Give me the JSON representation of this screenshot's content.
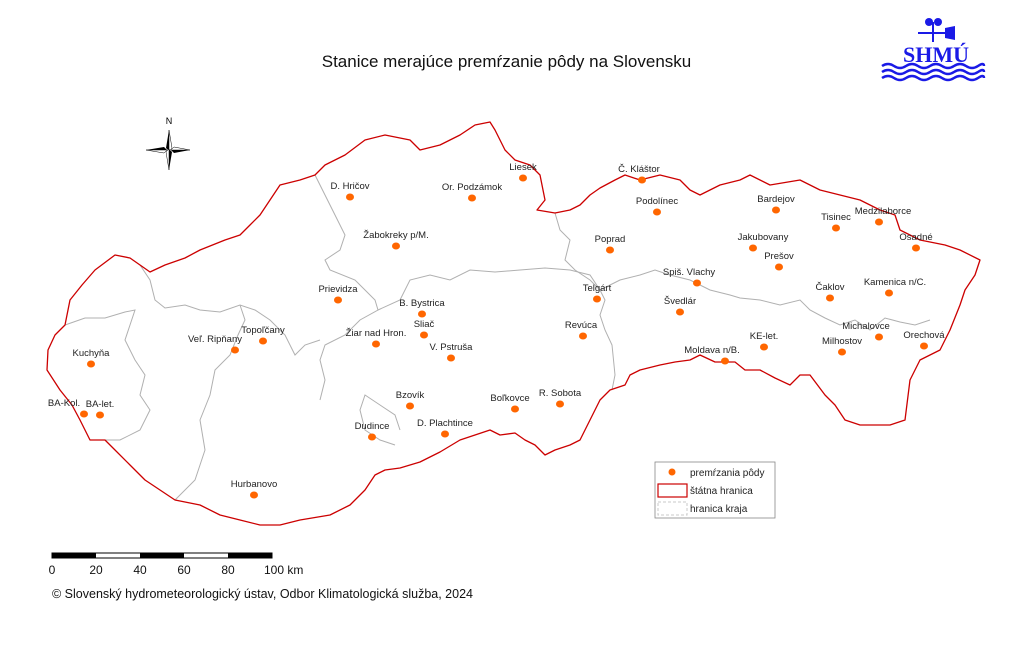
{
  "title": "Stanice merajúce premŕzanie pôdy na Slovensku",
  "logo": {
    "text": "SHMÚ",
    "color": "#1a1ae6"
  },
  "north_arrow": {
    "label": "N"
  },
  "colors": {
    "station": "#ff6600",
    "state_border": "#cc0000",
    "region_border": "#b0b0b0"
  },
  "stations": [
    "D. Hričov",
    "Or. Podzámok",
    "Žabokreky p/M.",
    "Prievidza",
    "B. Bystrica",
    "Sliač",
    "Žiar nad Hron.",
    "V. Pstruša",
    "Topoľčany",
    "Veľ. Ripňany",
    "Kuchyňa",
    "BA-Kol.",
    "BA-let.",
    "Bzovík",
    "Dudince",
    "D. Plachtince",
    "Hurbanovo",
    "Liesek",
    "Č. Kláštor",
    "Podolínec",
    "Poprad",
    "Bardejov",
    "Tisinec",
    "Medzilaborce",
    "Osadné",
    "Jakubovany",
    "Prešov",
    "Spiš. Vlachy",
    "Telgárt",
    "Švedlár",
    "Revúca",
    "Čaklov",
    "Kamenica n/C.",
    "Michalovce",
    "Orechová",
    "KE-let.",
    "Milhostov",
    "Moldava n/B.",
    "Boľkovce",
    "R. Sobota"
  ],
  "legend": {
    "station": "premŕzania pôdy",
    "state_border": "štátna hranica",
    "region_border": "hranica kraja"
  },
  "scale_bar": {
    "ticks": [
      "0",
      "20",
      "40",
      "60",
      "80",
      "100 km"
    ]
  },
  "copyright": "© Slovenský hydrometeorologický ústav, Odbor Klimatologická služba, 2024"
}
